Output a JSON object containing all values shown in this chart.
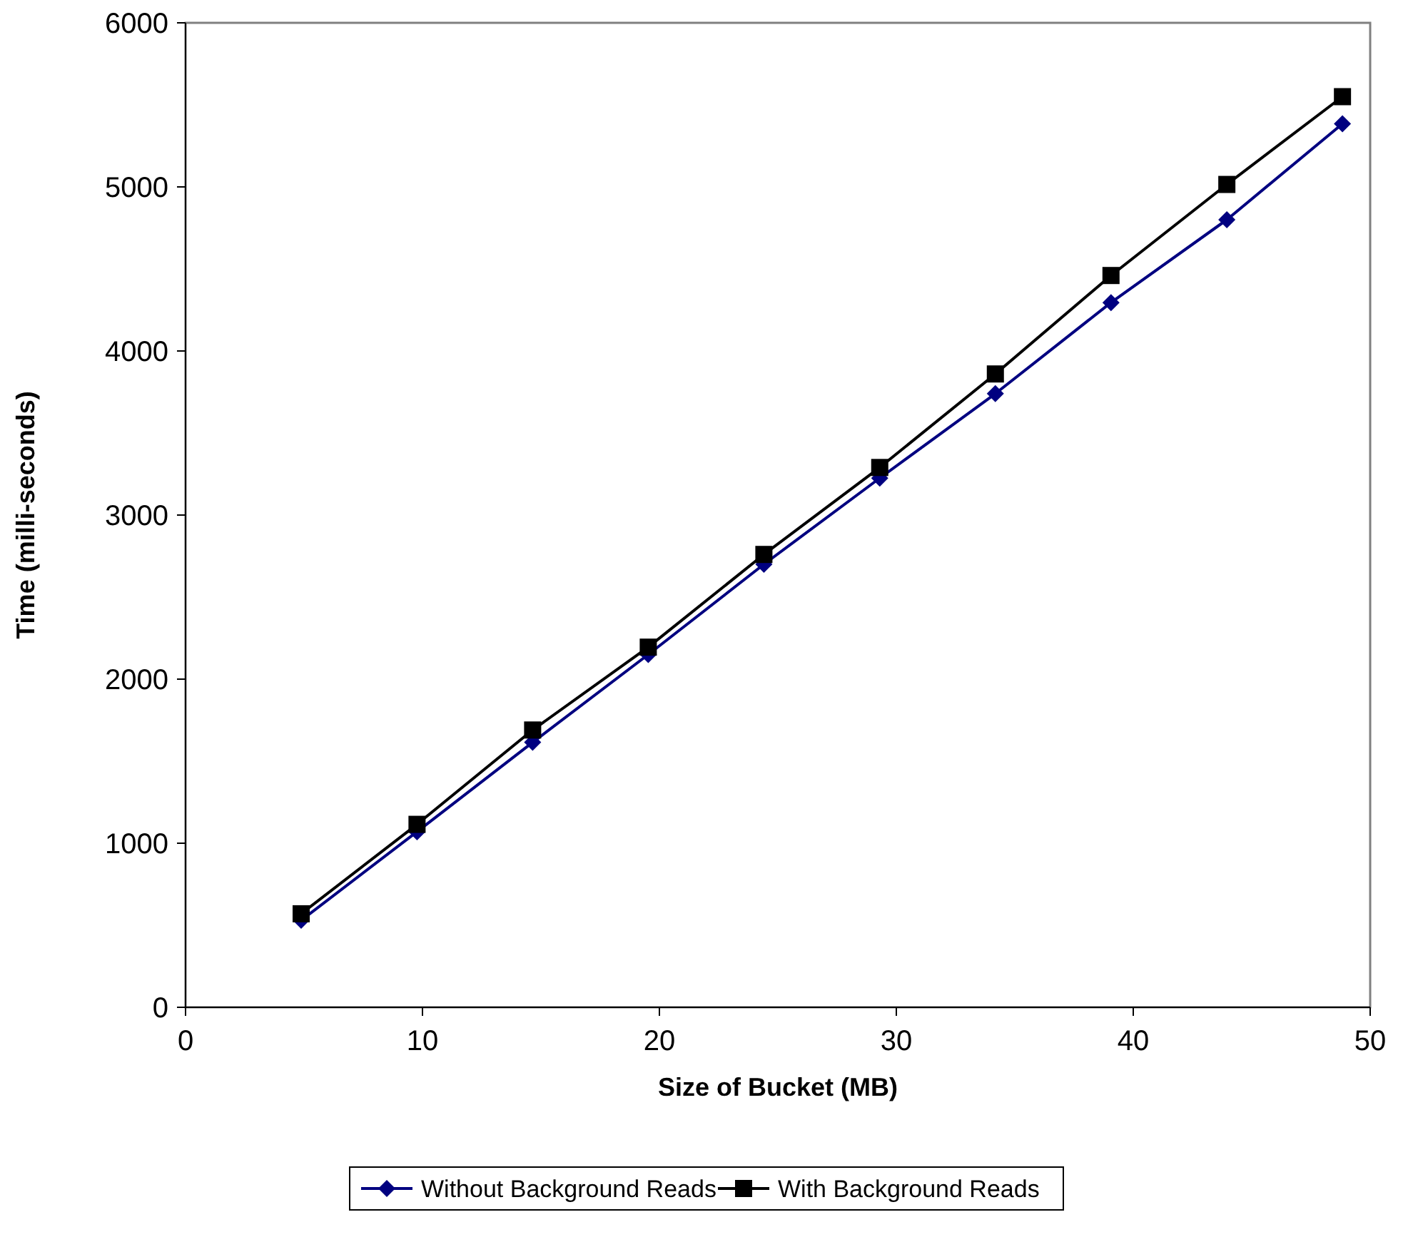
{
  "chart_data": {
    "type": "line",
    "xlabel": "Size of Bucket (MB)",
    "ylabel": "Time (milli-seconds)",
    "x": [
      4.88,
      9.77,
      14.65,
      19.53,
      24.41,
      29.3,
      34.18,
      39.06,
      43.95,
      48.83
    ],
    "series": [
      {
        "name": "Without Background Reads",
        "color": "#000080",
        "marker": "diamond",
        "values": [
          530,
          1070,
          1615,
          2150,
          2700,
          3225,
          3740,
          4295,
          4800,
          5385
        ]
      },
      {
        "name": "With Background Reads",
        "color": "#000000",
        "marker": "square",
        "values": [
          570,
          1115,
          1690,
          2195,
          2760,
          3290,
          3860,
          4460,
          5015,
          5550
        ]
      }
    ],
    "xlim": [
      0,
      50
    ],
    "xticks": [
      0,
      10,
      20,
      30,
      40,
      50
    ],
    "ylim": [
      0,
      6000
    ],
    "yticks": [
      0,
      1000,
      2000,
      3000,
      4000,
      5000,
      6000
    ],
    "grid": false,
    "legend": "bottom",
    "line_style": "solid"
  }
}
